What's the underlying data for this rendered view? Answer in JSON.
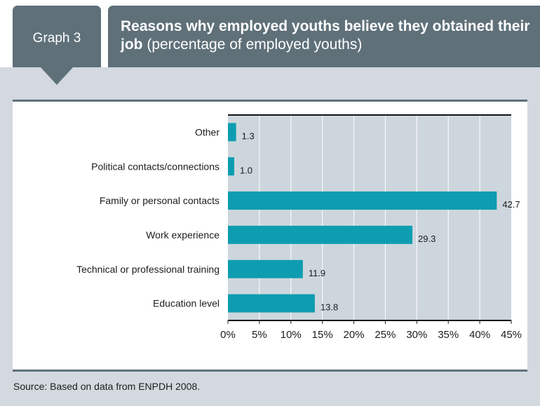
{
  "header": {
    "tab_label": "Graph 3",
    "title_bold": "Reasons why employed youths believe they obtained their job",
    "title_rest": " (percentage of employed youths)"
  },
  "footer": {
    "source": "Source: Based on data from ENPDH 2008."
  },
  "colors": {
    "bar": "#0e9db0",
    "plot_bg": "#cdd6dd",
    "header": "#5f7079",
    "panel": "#d3d9df"
  },
  "chart_data": {
    "type": "bar",
    "orientation": "horizontal",
    "title": "Reasons why employed youths believe they obtained their job (percentage of employed youths)",
    "categories": [
      "Other",
      "Political contacts/connections",
      "Family or personal contacts",
      "Work experience",
      "Technical or professional training",
      "Education level"
    ],
    "values": [
      1.3,
      1.0,
      42.7,
      29.3,
      11.9,
      13.8
    ],
    "value_labels": [
      "1.3",
      "1.0",
      "42.7",
      "29.3",
      "11.9",
      "13.8"
    ],
    "xlim": [
      0,
      45
    ],
    "xticks": [
      0,
      5,
      10,
      15,
      20,
      25,
      30,
      35,
      40,
      45
    ],
    "xtick_labels": [
      "0%",
      "5%",
      "10%",
      "15%",
      "20%",
      "25%",
      "30%",
      "35%",
      "40%",
      "45%"
    ],
    "grid": "vertical",
    "legend": "none"
  }
}
